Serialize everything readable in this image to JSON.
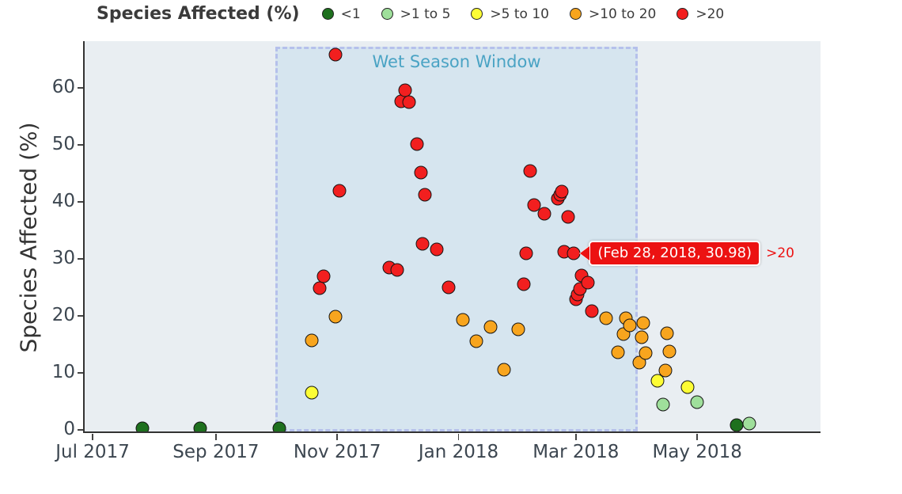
{
  "legend": {
    "title": "Species Affected (%)",
    "items": [
      {
        "label": "<1",
        "color": "#1e701e"
      },
      {
        "label": ">1 to 5",
        "color": "#9fdf9b"
      },
      {
        "label": ">5 to 10",
        "color": "#fdfd35"
      },
      {
        "label": ">10 to 20",
        "color": "#f8a51e"
      },
      {
        "label": ">20",
        "color": "#f21f1f"
      }
    ]
  },
  "icons": {
    "legend_marker": "filled-circle",
    "tooltip_arrow": "left-pointing-triangle"
  },
  "chart_data": {
    "type": "scatter",
    "title": "",
    "xlabel": "",
    "ylabel": "Species Affected (%)",
    "grid": false,
    "legend_position": "top",
    "colors": {
      "plot_background": "#e9eef2",
      "window_fill": "#d6e5ef",
      "window_border": "#b5c0eb",
      "window_label": "#4aa3c4",
      "axis": "#333333",
      "tooltip_background": "#ec1212"
    },
    "y_axis": {
      "range": [
        -0.3,
        68.2
      ],
      "ticks": [
        0,
        10,
        20,
        30,
        40,
        50,
        60
      ]
    },
    "x_axis": {
      "min": "2017-06-27",
      "max": "2018-07-02",
      "ticks": [
        {
          "label": "Jul 2017",
          "date": "2017-07-01"
        },
        {
          "label": "Sep 2017",
          "date": "2017-09-01"
        },
        {
          "label": "Nov 2017",
          "date": "2017-11-01"
        },
        {
          "label": "Jan 2018",
          "date": "2018-01-01"
        },
        {
          "label": "Mar 2018",
          "date": "2018-03-01"
        },
        {
          "label": "May 2018",
          "date": "2018-05-01"
        }
      ]
    },
    "annotation_window": {
      "label": "Wet Season Window",
      "start": "2017-10-01",
      "end": "2018-04-01"
    },
    "tooltip": {
      "date": "2018-02-28",
      "value": 30.98,
      "text": "(Feb 28, 2018, 30.98)",
      "category_label": ">20"
    },
    "points": [
      {
        "date": "2017-07-26",
        "value": 0.3,
        "category": "<1"
      },
      {
        "date": "2017-08-24",
        "value": 0.3,
        "category": "<1"
      },
      {
        "date": "2017-10-03",
        "value": 0.3,
        "category": "<1"
      },
      {
        "date": "2017-10-19",
        "value": 6.5,
        "category": ">5 to 10"
      },
      {
        "date": "2017-10-19",
        "value": 15.7,
        "category": ">10 to 20"
      },
      {
        "date": "2017-10-23",
        "value": 24.9,
        "category": ">20"
      },
      {
        "date": "2017-10-25",
        "value": 26.9,
        "category": ">20"
      },
      {
        "date": "2017-10-31",
        "value": 19.8,
        "category": ">10 to 20"
      },
      {
        "date": "2017-10-31",
        "value": 65.8,
        "category": ">20"
      },
      {
        "date": "2017-11-02",
        "value": 41.9,
        "category": ">20"
      },
      {
        "date": "2017-11-27",
        "value": 28.4,
        "category": ">20"
      },
      {
        "date": "2017-12-01",
        "value": 28.1,
        "category": ">20"
      },
      {
        "date": "2017-12-03",
        "value": 57.7,
        "category": ">20"
      },
      {
        "date": "2017-12-05",
        "value": 59.6,
        "category": ">20"
      },
      {
        "date": "2017-12-07",
        "value": 57.5,
        "category": ">20"
      },
      {
        "date": "2017-12-11",
        "value": 50.1,
        "category": ">20"
      },
      {
        "date": "2017-12-13",
        "value": 45.1,
        "category": ">20"
      },
      {
        "date": "2017-12-14",
        "value": 32.6,
        "category": ">20"
      },
      {
        "date": "2017-12-15",
        "value": 41.2,
        "category": ">20"
      },
      {
        "date": "2017-12-21",
        "value": 31.6,
        "category": ">20"
      },
      {
        "date": "2017-12-27",
        "value": 25.0,
        "category": ">20"
      },
      {
        "date": "2018-01-03",
        "value": 19.3,
        "category": ">10 to 20"
      },
      {
        "date": "2018-01-10",
        "value": 15.6,
        "category": ">10 to 20"
      },
      {
        "date": "2018-01-17",
        "value": 18.1,
        "category": ">10 to 20"
      },
      {
        "date": "2018-01-24",
        "value": 10.6,
        "category": ">10 to 20"
      },
      {
        "date": "2018-01-31",
        "value": 17.6,
        "category": ">10 to 20"
      },
      {
        "date": "2018-02-03",
        "value": 25.6,
        "category": ">20"
      },
      {
        "date": "2018-02-04",
        "value": 31.0,
        "category": ">20"
      },
      {
        "date": "2018-02-06",
        "value": 45.4,
        "category": ">20"
      },
      {
        "date": "2018-02-08",
        "value": 39.4,
        "category": ">20"
      },
      {
        "date": "2018-02-13",
        "value": 37.9,
        "category": ">20"
      },
      {
        "date": "2018-02-20",
        "value": 40.5,
        "category": ">20"
      },
      {
        "date": "2018-02-21",
        "value": 41.2,
        "category": ">20"
      },
      {
        "date": "2018-02-22",
        "value": 41.8,
        "category": ">20"
      },
      {
        "date": "2018-02-23",
        "value": 31.3,
        "category": ">20"
      },
      {
        "date": "2018-02-25",
        "value": 37.4,
        "category": ">20"
      },
      {
        "date": "2018-02-28",
        "value": 30.98,
        "category": ">20"
      },
      {
        "date": "2018-03-01",
        "value": 22.9,
        "category": ">20"
      },
      {
        "date": "2018-03-02",
        "value": 23.8,
        "category": ">20"
      },
      {
        "date": "2018-03-03",
        "value": 24.7,
        "category": ">20"
      },
      {
        "date": "2018-03-04",
        "value": 27.1,
        "category": ">20"
      },
      {
        "date": "2018-03-07",
        "value": 25.8,
        "category": ">20"
      },
      {
        "date": "2018-03-09",
        "value": 20.8,
        "category": ">20"
      },
      {
        "date": "2018-03-16",
        "value": 19.6,
        "category": ">10 to 20"
      },
      {
        "date": "2018-03-22",
        "value": 13.6,
        "category": ">10 to 20"
      },
      {
        "date": "2018-03-25",
        "value": 16.8,
        "category": ">10 to 20"
      },
      {
        "date": "2018-03-26",
        "value": 19.5,
        "category": ">10 to 20"
      },
      {
        "date": "2018-03-28",
        "value": 18.3,
        "category": ">10 to 20"
      },
      {
        "date": "2018-04-02",
        "value": 11.8,
        "category": ">10 to 20"
      },
      {
        "date": "2018-04-03",
        "value": 16.3,
        "category": ">10 to 20"
      },
      {
        "date": "2018-04-04",
        "value": 18.8,
        "category": ">10 to 20"
      },
      {
        "date": "2018-04-05",
        "value": 13.4,
        "category": ">10 to 20"
      },
      {
        "date": "2018-04-11",
        "value": 8.6,
        "category": ">5 to 10"
      },
      {
        "date": "2018-04-14",
        "value": 4.4,
        "category": ">1 to 5"
      },
      {
        "date": "2018-04-15",
        "value": 10.4,
        "category": ">10 to 20"
      },
      {
        "date": "2018-04-16",
        "value": 16.9,
        "category": ">10 to 20"
      },
      {
        "date": "2018-04-17",
        "value": 13.7,
        "category": ">10 to 20"
      },
      {
        "date": "2018-04-26",
        "value": 7.5,
        "category": ">5 to 10"
      },
      {
        "date": "2018-05-01",
        "value": 4.8,
        "category": ">1 to 5"
      },
      {
        "date": "2018-05-21",
        "value": 0.8,
        "category": "<1"
      },
      {
        "date": "2018-05-27",
        "value": 1.1,
        "category": ">1 to 5"
      }
    ]
  }
}
